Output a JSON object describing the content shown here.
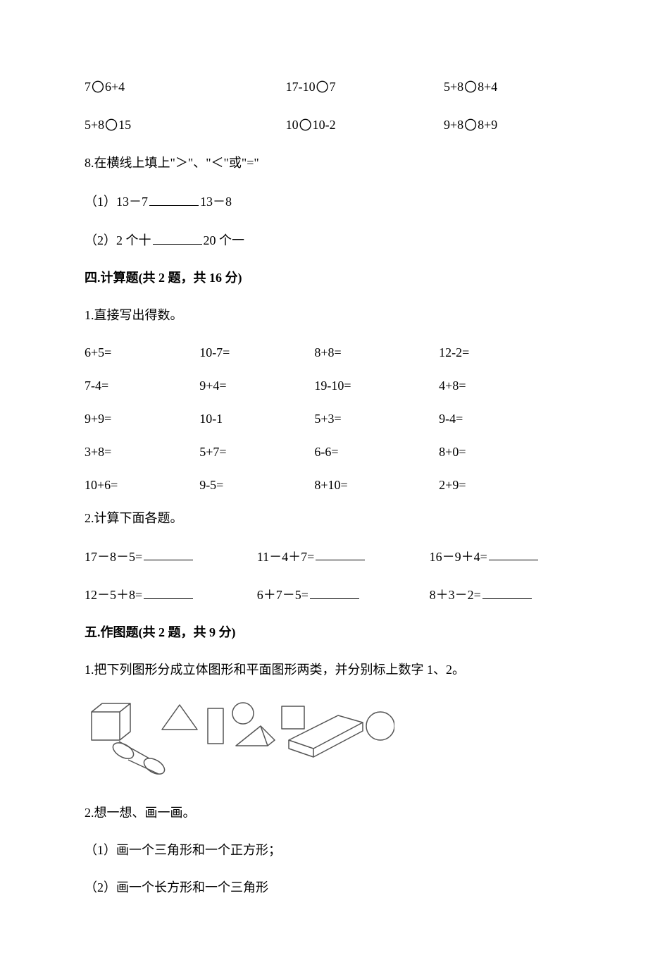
{
  "circle_glyph": "〇",
  "compare_rows": [
    [
      "7〇6+4",
      "17-10〇7",
      "5+8〇8+4"
    ],
    [
      "5+8〇15",
      "10〇10-2",
      "9+8〇8+9"
    ]
  ],
  "q8": {
    "title": "8.在横线上填上\"＞\"、\"＜\"或\"=\"",
    "items": [
      {
        "prefix": "（1）13－7",
        "suffix": "13－8"
      },
      {
        "prefix": "（2）2 个十",
        "suffix": "20 个一"
      }
    ]
  },
  "sec4": {
    "title": "四.计算题(共 2 题，共 16 分)",
    "q1_title": "1.直接写出得数。",
    "q1_rows": [
      [
        "6+5=",
        "10-7=",
        "8+8=",
        "12-2="
      ],
      [
        "7-4=",
        "9+4=",
        "19-10=",
        "4+8="
      ],
      [
        "9+9=",
        "10-1",
        "5+3=",
        "9-4="
      ],
      [
        "3+8=",
        "5+7=",
        "6-6=",
        "8+0="
      ],
      [
        "10+6=",
        "9-5=",
        "8+10=",
        "2+9="
      ]
    ],
    "q2_title": "2.计算下面各题。",
    "q2_rows": [
      [
        "17－8－5=",
        "11－4＋7=",
        "16－9＋4="
      ],
      [
        "12－5＋8=",
        "6＋7－5=",
        "8＋3－2="
      ]
    ]
  },
  "sec5": {
    "title": "五.作图题(共 2 题，共 9 分)",
    "q1": "1.把下列图形分成立体图形和平面图形两类，并分别标上数字 1、2。",
    "q2_title": "2.想一想、画一画。",
    "q2_items": [
      "（1）画一个三角形和一个正方形；",
      "（2）画一个长方形和一个三角形"
    ]
  },
  "svg": {
    "stroke": "#555555",
    "stroke_width": 1.5,
    "fill": "none"
  }
}
